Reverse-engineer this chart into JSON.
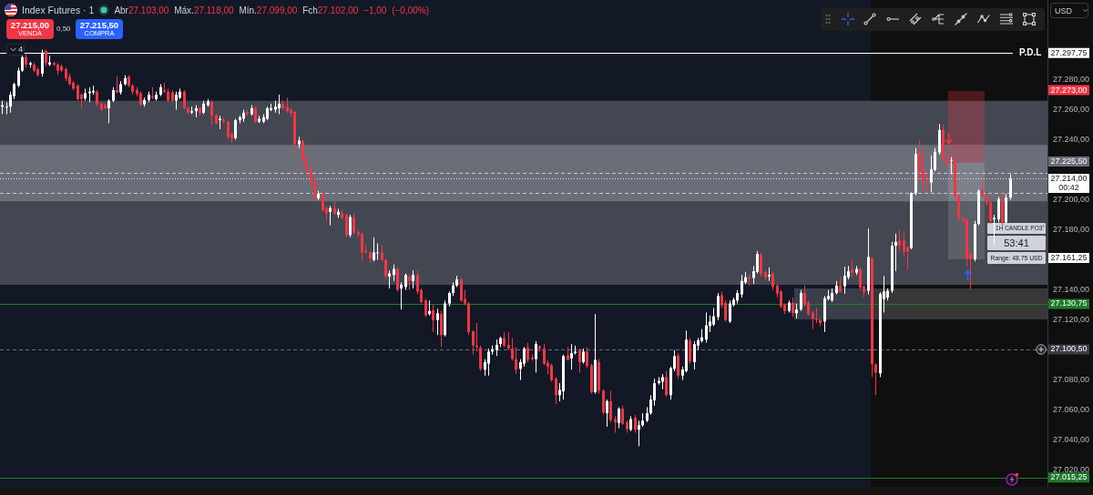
{
  "chart_data": {
    "type": "candlestick",
    "title": "Index Futures · 1",
    "subtitle": "Abr27.103,00 Máx.27.118,00 Mín.27.099,00 Fch27.102,00 −1,00 (−0,00%)",
    "categories": [
      null,
      null,
      null,
      null,
      null,
      null,
      null,
      null,
      null,
      null,
      null,
      null,
      null,
      null,
      null,
      null,
      null,
      null,
      null,
      null,
      null,
      null,
      null,
      null,
      null,
      null,
      null,
      null,
      null,
      null,
      null,
      null,
      null,
      null,
      null,
      null,
      null,
      null,
      null,
      null,
      null,
      null,
      null,
      null,
      null,
      null,
      null,
      null,
      null,
      null,
      null,
      null,
      null,
      null,
      null,
      null,
      null,
      null,
      null,
      null,
      null,
      null,
      null,
      null,
      null,
      null,
      null,
      null,
      null,
      null,
      null,
      null,
      null,
      null,
      null,
      null,
      null,
      null,
      null,
      null,
      null,
      null,
      null,
      null,
      null,
      null,
      null,
      null,
      null,
      null,
      null,
      null,
      null,
      null,
      null,
      null,
      null,
      null,
      null,
      null,
      null,
      null,
      null,
      null,
      null,
      null,
      null,
      null,
      null,
      null,
      null,
      null,
      null,
      null,
      null,
      null,
      null,
      null,
      null,
      null,
      null,
      null,
      null,
      null,
      null,
      null,
      null,
      null,
      null,
      null,
      null,
      null,
      null,
      null,
      null,
      null,
      null,
      null,
      null,
      null,
      null,
      null,
      null,
      null,
      null,
      null,
      null,
      null,
      null,
      null,
      null,
      null,
      null,
      null,
      null,
      null,
      null,
      null,
      null,
      null,
      null,
      null,
      null,
      null,
      null,
      null,
      null,
      null,
      null,
      null,
      null,
      null,
      null,
      null,
      null,
      null,
      null,
      null,
      null,
      null,
      null,
      null,
      null,
      null,
      null,
      null,
      null,
      null,
      null,
      null,
      null,
      null,
      null,
      null,
      null,
      null,
      null,
      null,
      null,
      null,
      null,
      null,
      null,
      null,
      null,
      null,
      null,
      null,
      null,
      null,
      null,
      null,
      null,
      null,
      null,
      null,
      null,
      null,
      null,
      null,
      null,
      null,
      null,
      null,
      null,
      null,
      null,
      null,
      null,
      null,
      null,
      null,
      null,
      null,
      null,
      null,
      null,
      null,
      null,
      null,
      null,
      null,
      null,
      null,
      null,
      null,
      null,
      null,
      null,
      null,
      null,
      null,
      null,
      null,
      null,
      null,
      null,
      null,
      null,
      null,
      null,
      null,
      null,
      null,
      null
    ],
    "ohlc": [
      [
        27262,
        27266,
        27257,
        27263
      ],
      [
        27261.5,
        27265,
        27257,
        27262
      ],
      [
        27262,
        27272,
        27258,
        27270
      ],
      [
        27269,
        27278,
        27267,
        27277
      ],
      [
        27276,
        27288,
        27275,
        27286
      ],
      [
        27286,
        27296,
        27285,
        27295
      ],
      [
        27295,
        27297,
        27288,
        27290
      ],
      [
        27290,
        27292,
        27288,
        27291
      ],
      [
        27290,
        27291,
        27285,
        27286
      ],
      [
        27287,
        27288,
        27282,
        27283
      ],
      [
        27284,
        27300,
        27282,
        27298
      ],
      [
        27299,
        27300,
        27289,
        27291
      ],
      [
        27290,
        27296,
        27289,
        27291.5
      ],
      [
        27291,
        27292,
        27289,
        27290
      ],
      [
        27290,
        27291,
        27283,
        27286
      ],
      [
        27289,
        27290,
        27285,
        27286
      ],
      [
        27287,
        27288,
        27279,
        27281
      ],
      [
        27282,
        27284,
        27276,
        27277
      ],
      [
        27278,
        27279,
        27273,
        27274
      ],
      [
        27276,
        27277,
        27266,
        27267
      ],
      [
        27270,
        27271,
        27261,
        27267
      ],
      [
        27267.5,
        27274,
        27266,
        27271
      ],
      [
        27271,
        27275,
        27265,
        27272
      ],
      [
        27271.5,
        27276,
        27270,
        27272.5
      ],
      [
        27272,
        27273,
        27262,
        27264
      ],
      [
        27264,
        27265,
        27259,
        27260
      ],
      [
        27263,
        27264,
        27260,
        27261
      ],
      [
        27261,
        27267,
        27251,
        27266
      ],
      [
        27266,
        27275,
        27265,
        27273
      ],
      [
        27273,
        27282,
        27271,
        27271.5
      ],
      [
        27271.5,
        27279,
        27270,
        27277
      ],
      [
        27277,
        27283,
        27276,
        27281
      ],
      [
        27282,
        27283,
        27275,
        27276
      ],
      [
        27276,
        27277,
        27270,
        27272
      ],
      [
        27273,
        27275,
        27269,
        27270.5
      ],
      [
        27271,
        27272,
        27262,
        27263.5
      ],
      [
        27263.5,
        27268,
        27262,
        27266.5
      ],
      [
        27266.5,
        27272,
        27265,
        27270
      ],
      [
        27269,
        27275,
        27267,
        27268
      ],
      [
        27267,
        27272,
        27266,
        27270
      ],
      [
        27270,
        27277,
        27269,
        27275
      ],
      [
        27273,
        27278,
        27271,
        27272
      ],
      [
        27272,
        27274,
        27265,
        27266
      ],
      [
        27271.5,
        27273,
        27265,
        27266
      ],
      [
        27266,
        27272,
        27260,
        27270
      ],
      [
        27268,
        27274,
        27267,
        27272
      ],
      [
        27272,
        27273,
        27260,
        27261
      ],
      [
        27261,
        27262,
        27257,
        27258
      ],
      [
        27258,
        27262,
        27257,
        27259
      ],
      [
        27259,
        27263,
        27255,
        27261
      ],
      [
        27261,
        27262,
        27256,
        27258
      ],
      [
        27258,
        27266,
        27257,
        27264
      ],
      [
        27263,
        27267,
        27262,
        27265.5
      ],
      [
        27265,
        27266,
        27250,
        27256
      ],
      [
        27256.5,
        27257,
        27250,
        27251
      ],
      [
        27253,
        27256,
        27247,
        27254
      ],
      [
        27253,
        27255,
        27251,
        27252
      ],
      [
        27252,
        27253,
        27240,
        27242
      ],
      [
        27244,
        27245,
        27238,
        27241
      ],
      [
        27241,
        27254,
        27240,
        27253
      ],
      [
        27253,
        27256,
        27251,
        27255
      ],
      [
        27254,
        27260,
        27252,
        27258
      ],
      [
        27258.5,
        27260,
        27256,
        27257
      ],
      [
        27257,
        27263,
        27256,
        27261
      ],
      [
        27261,
        27262,
        27251,
        27252
      ],
      [
        27252,
        27256,
        27251,
        27254
      ],
      [
        27252,
        27257,
        27251,
        27255
      ],
      [
        27254,
        27262,
        27253,
        27261
      ],
      [
        27260,
        27264,
        27259,
        27261
      ],
      [
        27260,
        27266,
        27258,
        27262
      ],
      [
        27261,
        27270,
        27257,
        27264
      ],
      [
        27264,
        27266,
        27260,
        27261
      ],
      [
        27262,
        27268,
        27258,
        27259
      ],
      [
        27260,
        27261,
        27255,
        27257.5
      ],
      [
        27258.5,
        27259,
        27234,
        27237
      ],
      [
        27237,
        27242,
        27234.5,
        27239.5
      ],
      [
        27239,
        27240,
        27225,
        27227
      ],
      [
        27228,
        27229,
        27217,
        27219
      ],
      [
        27220,
        27221,
        27210,
        27212
      ],
      [
        27213,
        27214,
        27200,
        27201
      ],
      [
        27201,
        27206,
        27200,
        27204
      ],
      [
        27204,
        27205,
        27192,
        27193
      ],
      [
        27194.5,
        27196,
        27186,
        27191
      ],
      [
        27192,
        27196,
        27183,
        27194.5
      ],
      [
        27194.5,
        27199,
        27190,
        27191
      ],
      [
        27190,
        27194,
        27188,
        27192
      ],
      [
        27191,
        27193,
        27187,
        27188
      ],
      [
        27190,
        27191,
        27175,
        27176.5
      ],
      [
        27176.5,
        27190,
        27175,
        27188.5
      ],
      [
        27188,
        27191,
        27177,
        27178
      ],
      [
        27178.5,
        27180,
        27175,
        27177
      ],
      [
        27177.5,
        27178,
        27159,
        27165
      ],
      [
        27166,
        27170,
        27164,
        27165
      ],
      [
        27165,
        27166,
        27158,
        27161
      ],
      [
        27160,
        27175,
        27159,
        27165
      ],
      [
        27164.5,
        27171,
        27160,
        27165
      ],
      [
        27165,
        27170,
        27159,
        27160
      ],
      [
        27160,
        27161,
        27147,
        27149
      ],
      [
        27149,
        27153,
        27141,
        27151
      ],
      [
        27150,
        27157,
        27146,
        27154
      ],
      [
        27154,
        27155,
        27139,
        27140
      ],
      [
        27141,
        27145,
        27127,
        27143.5
      ],
      [
        27142,
        27151,
        27140,
        27150
      ],
      [
        27149,
        27150,
        27140,
        27146
      ],
      [
        27146,
        27153,
        27141,
        27150
      ],
      [
        27150,
        27153,
        27137,
        27139
      ],
      [
        27140,
        27141,
        27131,
        27132
      ],
      [
        27133,
        27134,
        27122,
        27123
      ],
      [
        27124,
        27133,
        27123,
        27126
      ],
      [
        27126.5,
        27130,
        27112,
        27120
      ],
      [
        27120,
        27127.5,
        27110,
        27124.5
      ],
      [
        27124,
        27126,
        27102,
        27110
      ],
      [
        27110,
        27133,
        27109,
        27131
      ],
      [
        27131,
        27139,
        27129,
        27138
      ],
      [
        27138,
        27145,
        27136,
        27143
      ],
      [
        27143,
        27149.5,
        27142,
        27147
      ],
      [
        27147,
        27148,
        27132,
        27133
      ],
      [
        27134,
        27140,
        27130,
        27131
      ],
      [
        27131,
        27132,
        27110,
        27112
      ],
      [
        27112.5,
        27113,
        27097,
        27103
      ],
      [
        27103,
        27118,
        27099,
        27102
      ],
      [
        27101.5,
        27103,
        27086,
        27087.5
      ],
      [
        27087,
        27094,
        27083,
        27092
      ],
      [
        27091,
        27101,
        27083,
        27099
      ],
      [
        27099,
        27103,
        27097,
        27100.5
      ],
      [
        27100,
        27107,
        27096,
        27103.5
      ],
      [
        27104,
        27109,
        27102,
        27108
      ],
      [
        27108,
        27112,
        27102,
        27103
      ],
      [
        27103.5,
        27112,
        27100,
        27101
      ],
      [
        27101,
        27108,
        27093,
        27094
      ],
      [
        27094,
        27102,
        27084,
        27087
      ],
      [
        27087.5,
        27094,
        27080,
        27092
      ],
      [
        27091,
        27102,
        27089,
        27101
      ],
      [
        27101.5,
        27105,
        27092,
        27093.5
      ],
      [
        27095,
        27097,
        27093,
        27094
      ],
      [
        27094,
        27106,
        27085,
        27104
      ],
      [
        27102.5,
        27103,
        27099,
        27101
      ],
      [
        27101,
        27104,
        27090,
        27091
      ],
      [
        27091.5,
        27093,
        27084,
        27089
      ],
      [
        27090,
        27091,
        27079,
        27080
      ],
      [
        27081,
        27082,
        27064,
        27070
      ],
      [
        27070,
        27078,
        27066,
        27073.5
      ],
      [
        27072.5,
        27097,
        27067,
        27096
      ],
      [
        27096.5,
        27102,
        27093,
        27093.5
      ],
      [
        27094.5,
        27104,
        27087,
        27098
      ],
      [
        27098,
        27103,
        27097,
        27099
      ],
      [
        27100,
        27101,
        27085,
        27092
      ],
      [
        27092,
        27101,
        27091,
        27099
      ],
      [
        27099,
        27102,
        27088,
        27089.5
      ],
      [
        27090,
        27091,
        27071,
        27072
      ],
      [
        27072,
        27124,
        27071,
        27093.5
      ],
      [
        27092,
        27094,
        27071,
        27073
      ],
      [
        27073,
        27074,
        27057,
        27058.5
      ],
      [
        27058,
        27067,
        27049,
        27066
      ],
      [
        27066,
        27073,
        27052,
        27053.5
      ],
      [
        27054,
        27056,
        27045,
        27052
      ],
      [
        27051.5,
        27062,
        27048,
        27061
      ],
      [
        27061,
        27063,
        27050,
        27051
      ],
      [
        27052,
        27053,
        27045,
        27047.5
      ],
      [
        27047,
        27056,
        27046,
        27054
      ],
      [
        27055,
        27057,
        27045,
        27047
      ],
      [
        27047,
        27053,
        27036,
        27050
      ],
      [
        27050,
        27058,
        27049,
        27053
      ],
      [
        27053,
        27062,
        27052,
        27058
      ],
      [
        27058,
        27070,
        27057,
        27067
      ],
      [
        27066.5,
        27081,
        27063,
        27078
      ],
      [
        27078,
        27082,
        27077,
        27079.5
      ],
      [
        27079,
        27084,
        27074,
        27082
      ],
      [
        27082,
        27086,
        27069,
        27070
      ],
      [
        27070,
        27089,
        27067,
        27088
      ],
      [
        27087.5,
        27100,
        27086,
        27096
      ],
      [
        27096.5,
        27098,
        27081,
        27083
      ],
      [
        27083,
        27089,
        27080,
        27087
      ],
      [
        27086,
        27113,
        27085,
        27107
      ],
      [
        27106.5,
        27108,
        27091,
        27092.5
      ],
      [
        27092,
        27106,
        27087,
        27104
      ],
      [
        27103,
        27108,
        27100,
        27106.5
      ],
      [
        27106,
        27114,
        27105,
        27108.5
      ],
      [
        27107,
        27125,
        27105,
        27116.5
      ],
      [
        27116,
        27123,
        27112,
        27119
      ],
      [
        27117,
        27128,
        27116,
        27122.5
      ],
      [
        27122,
        27138,
        27120,
        27136
      ],
      [
        27136.5,
        27139,
        27128,
        27130
      ],
      [
        27131.5,
        27133,
        27119,
        27120
      ],
      [
        27119,
        27133,
        27118,
        27131
      ],
      [
        27130,
        27135,
        27129,
        27133.5
      ],
      [
        27133,
        27140,
        27131,
        27138
      ],
      [
        27137,
        27150,
        27135,
        27146
      ],
      [
        27145,
        27152,
        27144,
        27148.5
      ],
      [
        27148.5,
        27150,
        27143,
        27147.5
      ],
      [
        27148,
        27156,
        27144,
        27152.5
      ],
      [
        27152,
        27166,
        27151,
        27164
      ],
      [
        27163.5,
        27165,
        27149,
        27150.5
      ],
      [
        27152,
        27153,
        27146,
        27148.5
      ],
      [
        27149,
        27155,
        27146,
        27150
      ],
      [
        27151,
        27152,
        27140,
        27142
      ],
      [
        27143,
        27144,
        27135,
        27137.5
      ],
      [
        27139,
        27140,
        27128,
        27129
      ],
      [
        27130,
        27131,
        27124,
        27126
      ],
      [
        27126,
        27133,
        27125,
        27131.5
      ],
      [
        27131.5,
        27135,
        27122,
        27124.5
      ],
      [
        27124.5,
        27131,
        27121,
        27127
      ],
      [
        27127,
        27140,
        27126,
        27138
      ],
      [
        27138,
        27143,
        27129,
        27130
      ],
      [
        27131.5,
        27133,
        27123,
        27124
      ],
      [
        27125,
        27126,
        27114,
        27121
      ],
      [
        27121,
        27128,
        27118,
        27120
      ],
      [
        27120,
        27121,
        27116,
        27118
      ],
      [
        27119,
        27136,
        27112,
        27134.5
      ],
      [
        27134,
        27140,
        27133,
        27136
      ],
      [
        27133,
        27141,
        27132,
        27138
      ],
      [
        27138,
        27146,
        27137,
        27143
      ],
      [
        27143,
        27149,
        27138,
        27139
      ],
      [
        27142.5,
        27155.5,
        27137.5,
        27149.5
      ],
      [
        27148.5,
        27156,
        27147,
        27152.5
      ],
      [
        27153.5,
        27160,
        27149,
        27151.5
      ],
      [
        27151.5,
        27156,
        27150,
        27154
      ],
      [
        27154,
        27155,
        27140,
        27141.5
      ],
      [
        27142.5,
        27143,
        27135,
        27138.5
      ],
      [
        27139.5,
        27181,
        27137,
        27162
      ],
      [
        27161,
        27162,
        27082,
        27090.5
      ],
      [
        27090.5,
        27091,
        27070,
        27085
      ],
      [
        27084.5,
        27138.5,
        27082,
        27137.5
      ],
      [
        27134,
        27149.5,
        27125,
        27139
      ],
      [
        27135,
        27141,
        27133,
        27139.5
      ],
      [
        27139.5,
        27172,
        27138,
        27169.5
      ],
      [
        27169.5,
        27177.5,
        27152.5,
        27172
      ],
      [
        27173,
        27180,
        27165.5,
        27169.5
      ],
      [
        27173,
        27179,
        27162.5,
        27165.5
      ],
      [
        27168.5,
        27169,
        27153.5,
        27165.5
      ],
      [
        27168,
        27205,
        27167,
        27204.5
      ],
      [
        27204.5,
        27234.5,
        27203,
        27230.5
      ],
      [
        27230.5,
        27239.5,
        27212,
        27218.5
      ],
      [
        27220,
        27234,
        27205,
        27212
      ],
      [
        27213,
        27218,
        27205,
        27211.5
      ],
      [
        27211.5,
        27229.5,
        27205,
        27220.5
      ],
      [
        27220,
        27234.5,
        27219,
        27232
      ],
      [
        27231.5,
        27250.5,
        27230,
        27246.5
      ],
      [
        27246.5,
        27250,
        27226,
        27228
      ],
      [
        27228,
        27229,
        27222,
        27224.5
      ],
      [
        27226,
        27228.5,
        27217,
        27226.5
      ],
      [
        27226,
        27229.5,
        27200,
        27202
      ],
      [
        27202.5,
        27203,
        27186,
        27188
      ],
      [
        27188,
        27189,
        27185,
        27186
      ],
      [
        27187,
        27188,
        27155.5,
        27160.5
      ],
      [
        27164.5,
        27165,
        27140.5,
        27160.5
      ],
      [
        27160.5,
        27186,
        27159,
        27184
      ],
      [
        27184,
        27207,
        27183,
        27206
      ],
      [
        27206.5,
        27213,
        27201,
        27202.5
      ],
      [
        27202.5,
        27204,
        27196,
        27198
      ],
      [
        27198.5,
        27199,
        27184,
        27186
      ],
      [
        27187,
        27190,
        27170,
        27188
      ],
      [
        27187,
        27202,
        27185,
        27200.5
      ],
      [
        27200.5,
        27206,
        27183,
        27185
      ],
      [
        27185,
        27204,
        27184,
        27201.5
      ],
      [
        27201.5,
        27217,
        27200,
        27214
      ],
      null,
      null,
      null,
      null,
      null,
      null,
      null,
      null,
      null
    ],
    "colors": [
      "#ffffff",
      "#ffffff",
      "#ffffff",
      "#ffffff",
      "#ffffff",
      "#ffffff",
      "#f23645",
      "#ffffff",
      "#f23645",
      "#f23645",
      "#ffffff",
      "#f23645",
      "#ffffff",
      "#f23645",
      "#f23645",
      "#f23645",
      "#f23645",
      "#f23645",
      "#f23645",
      "#f23645",
      "#f23645",
      "#ffffff",
      "#ffffff",
      "#ffffff",
      "#f23645",
      "#f23645",
      "#f23645",
      "#ffffff",
      "#ffffff",
      "#f23645",
      "#ffffff",
      "#ffffff",
      "#f23645",
      "#f23645",
      "#f23645",
      "#f23645",
      "#ffffff",
      "#ffffff",
      "#f23645",
      "#ffffff",
      "#ffffff",
      "#f23645",
      "#f23645",
      "#f23645",
      "#ffffff",
      "#ffffff",
      "#f23645",
      "#f23645",
      "#ffffff",
      "#ffffff",
      "#f23645",
      "#ffffff",
      "#ffffff",
      "#f23645",
      "#f23645",
      "#ffffff",
      "#f23645",
      "#f23645",
      "#f23645",
      "#ffffff",
      "#ffffff",
      "#ffffff",
      "#f23645",
      "#ffffff",
      "#f23645",
      "#ffffff",
      "#ffffff",
      "#ffffff",
      "#ffffff",
      "#ffffff",
      "#ffffff",
      "#f23645",
      "#f23645",
      "#f23645",
      "#f23645",
      "#ffffff",
      "#f23645",
      "#f23645",
      "#f23645",
      "#f23645",
      "#ffffff",
      "#f23645",
      "#f23645",
      "#ffffff",
      "#f23645",
      "#ffffff",
      "#f23645",
      "#f23645",
      "#ffffff",
      "#f23645",
      "#f23645",
      "#f23645",
      "#f23645",
      "#f23645",
      "#ffffff",
      "#ffffff",
      "#f23645",
      "#f23645",
      "#ffffff",
      "#ffffff",
      "#f23645",
      "#ffffff",
      "#ffffff",
      "#f23645",
      "#ffffff",
      "#f23645",
      "#f23645",
      "#f23645",
      "#ffffff",
      "#f23645",
      "#ffffff",
      "#f23645",
      "#ffffff",
      "#ffffff",
      "#ffffff",
      "#ffffff",
      "#f23645",
      "#f23645",
      "#f23645",
      "#f23645",
      "#f23645",
      "#f23645",
      "#ffffff",
      "#ffffff",
      "#ffffff",
      "#ffffff",
      "#ffffff",
      "#f23645",
      "#f23645",
      "#f23645",
      "#f23645",
      "#ffffff",
      "#ffffff",
      "#f23645",
      "#f23645",
      "#ffffff",
      "#f23645",
      "#f23645",
      "#f23645",
      "#f23645",
      "#f23645",
      "#ffffff",
      "#ffffff",
      "#f23645",
      "#ffffff",
      "#ffffff",
      "#f23645",
      "#ffffff",
      "#f23645",
      "#f23645",
      "#ffffff",
      "#f23645",
      "#f23645",
      "#ffffff",
      "#f23645",
      "#f23645",
      "#ffffff",
      "#f23645",
      "#f23645",
      "#ffffff",
      "#f23645",
      "#ffffff",
      "#ffffff",
      "#ffffff",
      "#ffffff",
      "#ffffff",
      "#ffffff",
      "#ffffff",
      "#f23645",
      "#ffffff",
      "#ffffff",
      "#f23645",
      "#ffffff",
      "#ffffff",
      "#f23645",
      "#ffffff",
      "#ffffff",
      "#ffffff",
      "#ffffff",
      "#ffffff",
      "#ffffff",
      "#ffffff",
      "#f23645",
      "#f23645",
      "#ffffff",
      "#ffffff",
      "#ffffff",
      "#ffffff",
      "#ffffff",
      "#f23645",
      "#ffffff",
      "#ffffff",
      "#f23645",
      "#f23645",
      "#ffffff",
      "#f23645",
      "#f23645",
      "#f23645",
      "#f23645",
      "#ffffff",
      "#f23645",
      "#ffffff",
      "#ffffff",
      "#f23645",
      "#f23645",
      "#f23645",
      "#f23645",
      "#f23645",
      "#ffffff",
      "#ffffff",
      "#ffffff",
      "#ffffff",
      "#f23645",
      "#ffffff",
      "#ffffff",
      "#f23645",
      "#ffffff",
      "#f23645",
      "#f23645",
      "#ffffff",
      "#f23645",
      "#f23645",
      "#ffffff",
      "#ffffff",
      "#ffffff",
      "#ffffff",
      "#ffffff",
      "#f23645",
      "#f23645",
      "#f23645",
      "#ffffff",
      "#ffffff",
      "#f23645",
      "#f23645",
      "#f23645",
      "#ffffff",
      "#ffffff",
      "#ffffff",
      "#f23645",
      "#f23645",
      "#ffffff",
      "#f23645",
      "#f23645",
      "#f23645",
      "#f23645",
      "#f23645",
      "#ffffff",
      "#ffffff",
      "#f23645",
      "#f23645",
      "#f23645",
      "#ffffff",
      "#ffffff",
      "#f23645",
      "#ffffff",
      "#ffffff",
      null,
      null,
      null,
      null,
      null,
      null,
      null,
      null,
      null
    ],
    "ylim": [
      27009,
      27333
    ],
    "yticks": [
      {
        "value": 27020,
        "label": "27.020,00"
      },
      {
        "value": 27040,
        "label": "27.040,00"
      },
      {
        "value": 27060,
        "label": "27.060,00"
      },
      {
        "value": 27080,
        "label": "27.080,00"
      },
      {
        "value": 27120,
        "label": "27.120,00"
      },
      {
        "value": 27140,
        "label": "27.140,00"
      },
      {
        "value": 27180,
        "label": "27.180,00"
      },
      {
        "value": 27200,
        "label": "27.200,00"
      },
      {
        "value": 27240,
        "label": "27.240,00"
      },
      {
        "value": 27260,
        "label": "27.260,00"
      },
      {
        "value": 27280,
        "label": "27.280,00"
      }
    ],
    "tick_labels": "y",
    "bands": [
      {
        "axis": "y",
        "from": 27143.5,
        "to": 27266,
        "color": "#434751"
      },
      {
        "axis": "y",
        "from": 27199,
        "to": 27236.5,
        "color": "#6b6e78"
      }
    ],
    "ref_lines": [
      {
        "axis": "y",
        "value": 27297.75,
        "label": "P.D.L",
        "color": "#ffffff",
        "line_style": "solid"
      },
      {
        "axis": "y",
        "value": 27218,
        "color": "#c8cad0",
        "line_style": "dashed"
      },
      {
        "axis": "y",
        "value": 27214,
        "color": "#e0e3eb",
        "line_style": "dotted"
      },
      {
        "axis": "y",
        "value": 27204.5,
        "color": "#c8cad0",
        "line_style": "dashed"
      },
      {
        "axis": "y",
        "value": 27130.75,
        "color": "#1f7a2a",
        "line_style": "solid"
      },
      {
        "axis": "y",
        "value": 27100.5,
        "color": "#6a6d78",
        "line_style": "dashed"
      },
      {
        "axis": "y",
        "value": 27015.25,
        "color": "#1f7a2a",
        "line_style": "solid"
      }
    ],
    "annotations": [
      "27.215,00",
      "VENDA",
      "0,50",
      "27.215,50",
      "COMPRA",
      "4",
      "USD",
      "1H CANDLE PO3°",
      "53:41",
      "Range: 48.75 USD",
      "27.297,75",
      "27.273,00",
      "27.225,50",
      "27.214,00",
      "00:42",
      "27.161,25",
      "27.130,75",
      "27.100,50",
      "27.015,25"
    ]
  }
}
